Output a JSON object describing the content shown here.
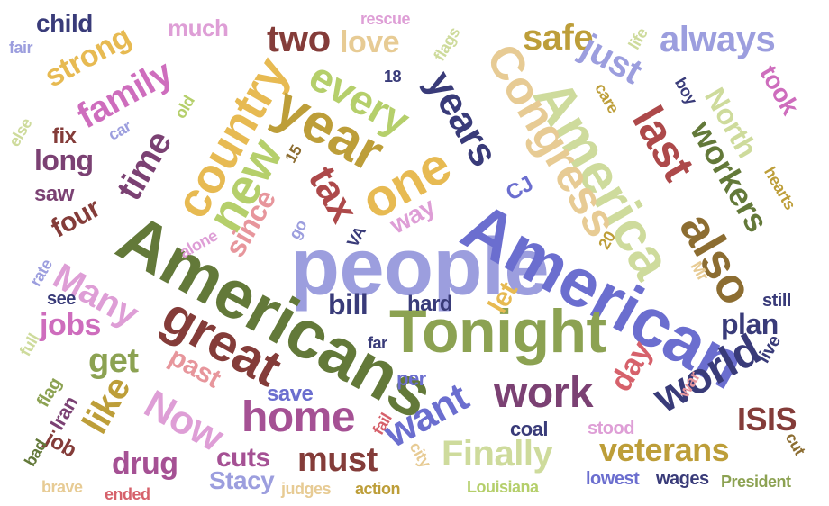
{
  "words": [
    {
      "text": "people",
      "color": "#9c9ede"
    },
    {
      "text": "Americans",
      "color": "#637939"
    },
    {
      "text": "American",
      "color": "#6b6ecf"
    },
    {
      "text": "Tonight",
      "color": "#8ca252"
    },
    {
      "text": "America",
      "color": "#cedb9c"
    },
    {
      "text": "Congress",
      "color": "#e7cb94"
    },
    {
      "text": "country",
      "color": "#e7ba52"
    },
    {
      "text": "great",
      "color": "#843c39"
    },
    {
      "text": "new",
      "color": "#b5cf6b"
    },
    {
      "text": "year",
      "color": "#bd9e39"
    },
    {
      "text": "one",
      "color": "#e7ba52"
    },
    {
      "text": "work",
      "color": "#7b4173"
    },
    {
      "text": "home",
      "color": "#a55194"
    },
    {
      "text": "world",
      "color": "#393b79"
    },
    {
      "text": "also",
      "color": "#8c6d31"
    },
    {
      "text": "last",
      "color": "#ad494a"
    },
    {
      "text": "years",
      "color": "#393b79"
    },
    {
      "text": "workers",
      "color": "#637939"
    },
    {
      "text": "North",
      "color": "#cedb9c"
    },
    {
      "text": "every",
      "color": "#b5cf6b"
    },
    {
      "text": "Now",
      "color": "#de9ed6"
    },
    {
      "text": "want",
      "color": "#6b6ecf"
    },
    {
      "text": "Finally",
      "color": "#cedb9c"
    },
    {
      "text": "veterans",
      "color": "#bd9e39"
    },
    {
      "text": "tax",
      "color": "#ad494a"
    },
    {
      "text": "family",
      "color": "#ce6dbd"
    },
    {
      "text": "time",
      "color": "#7b4173"
    },
    {
      "text": "strong",
      "color": "#e7ba52"
    },
    {
      "text": "two",
      "color": "#843c39"
    },
    {
      "text": "love",
      "color": "#e7cb94"
    },
    {
      "text": "safe",
      "color": "#bd9e39"
    },
    {
      "text": "just",
      "color": "#9c9ede"
    },
    {
      "text": "always",
      "color": "#9c9ede"
    },
    {
      "text": "Many",
      "color": "#de9ed6"
    },
    {
      "text": "like",
      "color": "#bd9e39"
    },
    {
      "text": "jobs",
      "color": "#ce6dbd"
    },
    {
      "text": "get",
      "color": "#8ca252"
    },
    {
      "text": "must",
      "color": "#843c39"
    },
    {
      "text": "ISIS",
      "color": "#843c39"
    },
    {
      "text": "plan",
      "color": "#393b79"
    },
    {
      "text": "day",
      "color": "#d6616b"
    },
    {
      "text": "bill",
      "color": "#393b79"
    },
    {
      "text": "since",
      "color": "#e7969c"
    },
    {
      "text": "let",
      "color": "#e7ba52"
    },
    {
      "text": "long",
      "color": "#7b4173"
    },
    {
      "text": "four",
      "color": "#843c39"
    },
    {
      "text": "drug",
      "color": "#a55194"
    },
    {
      "text": "past",
      "color": "#e7969c"
    },
    {
      "text": "cuts",
      "color": "#a55194"
    },
    {
      "text": "way",
      "color": "#de9ed6"
    },
    {
      "text": "took",
      "color": "#ce6dbd"
    },
    {
      "text": "save",
      "color": "#6b6ecf"
    },
    {
      "text": "Stacy",
      "color": "#9c9ede"
    },
    {
      "text": "much",
      "color": "#de9ed6"
    },
    {
      "text": "child",
      "color": "#393b79"
    },
    {
      "text": "fix",
      "color": "#843c39"
    },
    {
      "text": "saw",
      "color": "#7b4173"
    },
    {
      "text": "hard",
      "color": "#393b79"
    },
    {
      "text": "per",
      "color": "#6b6ecf"
    },
    {
      "text": "coal",
      "color": "#393b79"
    },
    {
      "text": "see",
      "color": "#393b79"
    },
    {
      "text": "CJ",
      "color": "#6b6ecf"
    },
    {
      "text": "job",
      "color": "#843c39"
    },
    {
      "text": "Iran",
      "color": "#7b4173"
    },
    {
      "text": "flag",
      "color": "#8ca252"
    },
    {
      "text": "full",
      "color": "#cedb9c"
    },
    {
      "text": "bad",
      "color": "#637939"
    },
    {
      "text": "brave",
      "color": "#e7cb94"
    },
    {
      "text": "ended",
      "color": "#d6616b"
    },
    {
      "text": "judges",
      "color": "#e7cb94"
    },
    {
      "text": "action",
      "color": "#bd9e39"
    },
    {
      "text": "Louisiana",
      "color": "#b5cf6b"
    },
    {
      "text": "lowest",
      "color": "#6b6ecf"
    },
    {
      "text": "wages",
      "color": "#393b79"
    },
    {
      "text": "President",
      "color": "#8ca252"
    },
    {
      "text": "stood",
      "color": "#de9ed6"
    },
    {
      "text": "live",
      "color": "#393b79"
    },
    {
      "text": "still",
      "color": "#393b79"
    },
    {
      "text": "cut",
      "color": "#8c6d31"
    },
    {
      "text": "war",
      "color": "#e7969c"
    },
    {
      "text": "city",
      "color": "#e7cb94"
    },
    {
      "text": "fail",
      "color": "#d6616b"
    },
    {
      "text": "far",
      "color": "#393b79"
    },
    {
      "text": "rescue",
      "color": "#de9ed6"
    },
    {
      "text": "flags",
      "color": "#cedb9c"
    },
    {
      "text": "life",
      "color": "#cedb9c"
    },
    {
      "text": "fair",
      "color": "#9c9ede"
    },
    {
      "text": "else",
      "color": "#cedb9c"
    },
    {
      "text": "car",
      "color": "#9c9ede"
    },
    {
      "text": "old",
      "color": "#b5cf6b"
    },
    {
      "text": "care",
      "color": "#bd9e39"
    },
    {
      "text": "boy",
      "color": "#393b79"
    },
    {
      "text": "hearts",
      "color": "#bd9e39"
    },
    {
      "text": "alone",
      "color": "#de9ed6"
    },
    {
      "text": "go",
      "color": "#9c9ede"
    },
    {
      "text": "VA",
      "color": "#393b79"
    },
    {
      "text": "rate",
      "color": "#9c9ede"
    },
    {
      "text": "Mr",
      "color": "#e7cb94"
    },
    {
      "text": "20",
      "color": "#bd9e39"
    },
    {
      "text": "15",
      "color": "#8c6d31"
    },
    {
      "text": "18",
      "color": "#393b79"
    }
  ]
}
